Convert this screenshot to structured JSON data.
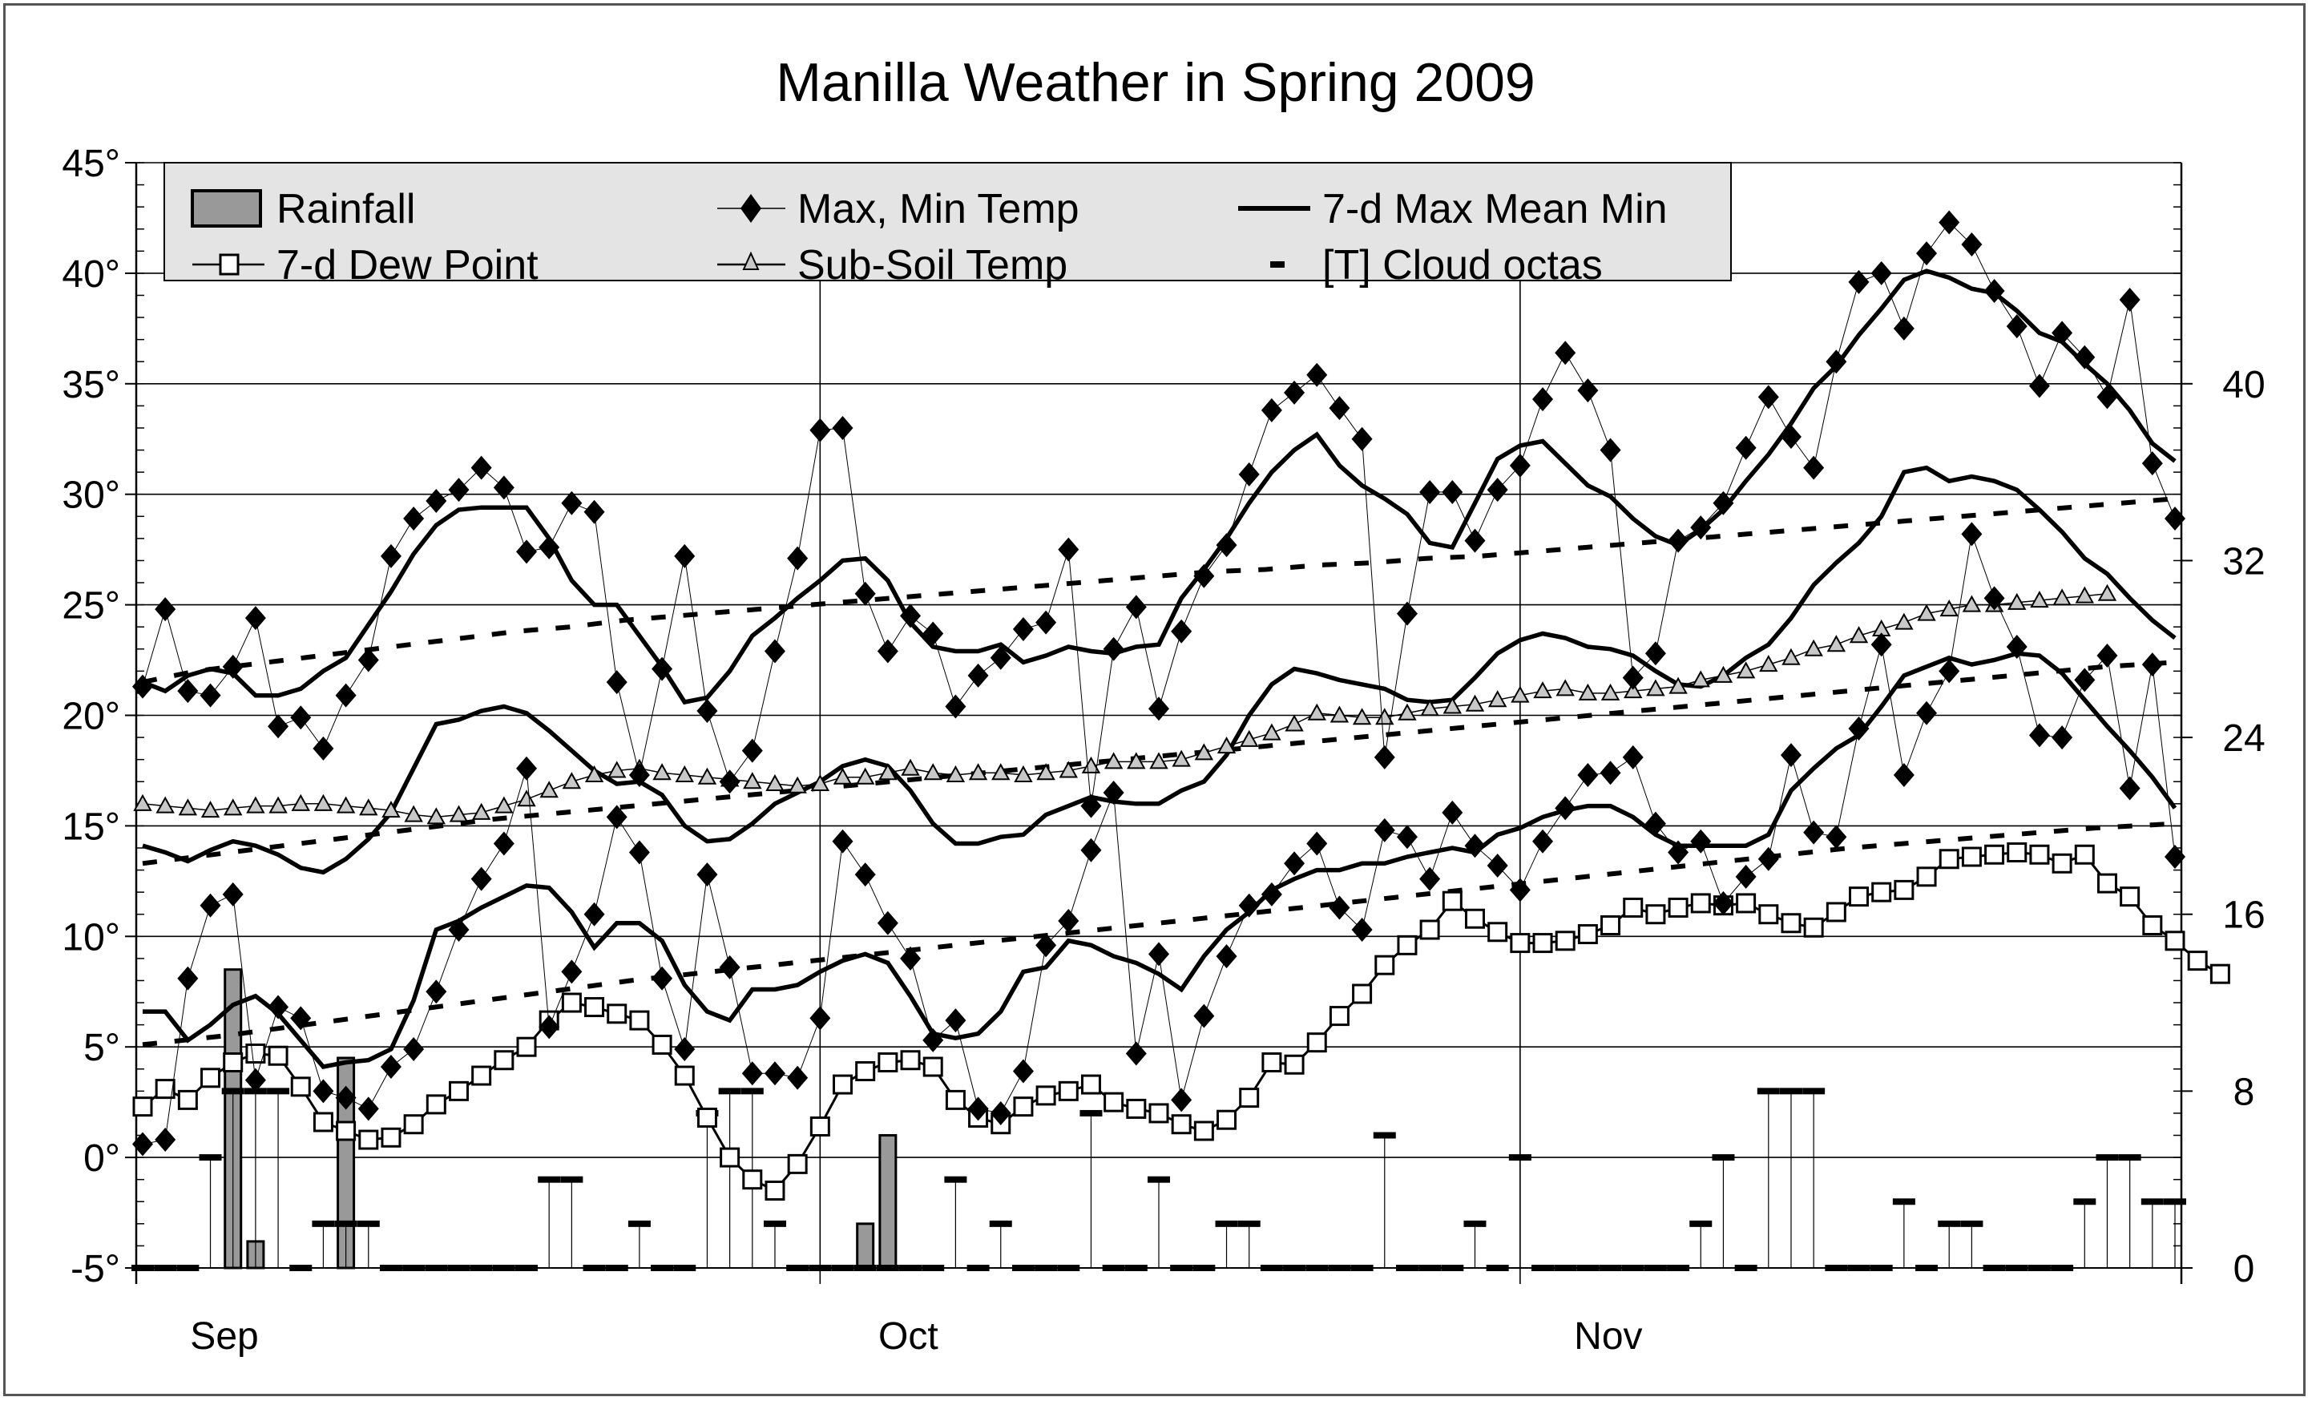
{
  "chart_data": {
    "type": "line",
    "title": "Manilla Weather in Spring 2009",
    "xlabel": "",
    "ylabel": "",
    "ylim": [
      -5,
      45
    ],
    "y2lim": [
      0,
      50
    ],
    "grid": true,
    "legend_placement": "top-left",
    "y_tick_labels": [
      "45°",
      "40°",
      "35°",
      "30°",
      "25°",
      "20°",
      "15°",
      "10°",
      "5°",
      "0°",
      "-5°"
    ],
    "y_tick_values": [
      45,
      40,
      35,
      30,
      25,
      20,
      15,
      10,
      5,
      0,
      -5
    ],
    "y2_tick_labels": [
      "40",
      "32",
      "24",
      "16",
      "8",
      "0"
    ],
    "y2_tick_values": [
      40,
      32,
      24,
      16,
      8,
      0
    ],
    "x_tick_labels": [
      "Sep",
      "Oct",
      "Nov"
    ],
    "x_tick_days": [
      0,
      30,
      61
    ],
    "legend": [
      {
        "key": "rainfall",
        "label": "Rainfall",
        "symbol": "bar"
      },
      {
        "key": "maxmin",
        "label": "Max, Min Temp",
        "symbol": "diamond"
      },
      {
        "key": "mean7",
        "label": "7-d  Max Mean Min",
        "symbol": "thick-line"
      },
      {
        "key": "dew",
        "label": "7-d Dew Point",
        "symbol": "square"
      },
      {
        "key": "soil",
        "label": "Sub-Soil Temp",
        "symbol": "triangle"
      },
      {
        "key": "cloud",
        "label": "[T] Cloud octas",
        "symbol": "dash"
      }
    ],
    "colors": {
      "bar": "#999999",
      "line": "#000000",
      "soil_marker": "#c8c8c8",
      "legend_bg": "#e4e4e4"
    },
    "series": [
      {
        "name": "Max Temp",
        "values": [
          21.3,
          24.8,
          21.1,
          20.9,
          22.2,
          24.4,
          19.5,
          19.9,
          18.5,
          20.9,
          22.5,
          27.2,
          28.9,
          29.7,
          30.2,
          31.2,
          30.3,
          27.4,
          27.6,
          29.6,
          29.2,
          21.5,
          17.3,
          22.1,
          27.2,
          20.2,
          17.0,
          18.4,
          22.9,
          27.1,
          32.9,
          33.0,
          25.5,
          22.9,
          24.5,
          23.7,
          20.4,
          21.8,
          22.6,
          23.9,
          24.2,
          27.5,
          15.9,
          23.0,
          24.9,
          20.3,
          23.8,
          26.3,
          27.7,
          30.9,
          33.8,
          34.6,
          35.4,
          33.9,
          32.5,
          18.1,
          24.6,
          30.1,
          30.1,
          27.9,
          30.2,
          31.3,
          34.3,
          36.4,
          34.7,
          32.0,
          21.7,
          22.8,
          27.9,
          28.5,
          29.6,
          32.1,
          34.4,
          32.6,
          31.2,
          36.0,
          39.6,
          40.0,
          37.5,
          40.9,
          42.3,
          41.3,
          39.2,
          37.6,
          34.9,
          37.3,
          36.2,
          34.4,
          38.8,
          31.4,
          28.9
        ]
      },
      {
        "name": "Min Temp",
        "values": [
          0.6,
          0.8,
          8.1,
          11.4,
          11.9,
          3.5,
          6.8,
          6.3,
          3.0,
          2.7,
          2.2,
          4.1,
          4.9,
          7.5,
          10.3,
          12.6,
          14.2,
          17.6,
          5.9,
          8.4,
          11.0,
          15.4,
          13.8,
          8.1,
          4.9,
          12.8,
          8.6,
          3.8,
          3.8,
          3.6,
          6.3,
          14.3,
          12.8,
          10.6,
          9.0,
          5.3,
          6.2,
          2.2,
          2.0,
          3.9,
          9.6,
          10.7,
          13.9,
          16.5,
          4.7,
          9.2,
          2.6,
          6.4,
          9.1,
          11.4,
          11.9,
          13.3,
          14.2,
          11.3,
          10.3,
          14.8,
          14.5,
          12.6,
          15.6,
          14.1,
          13.2,
          12.1,
          14.3,
          15.8,
          17.3,
          17.4,
          18.1,
          15.1,
          13.8,
          14.3,
          11.5,
          12.7,
          13.5,
          18.2,
          14.7,
          14.5,
          19.4,
          23.2,
          17.3,
          20.1,
          22.0,
          28.2,
          25.3,
          23.1,
          19.1,
          19.0,
          21.6,
          22.7,
          16.7,
          22.3,
          13.6
        ]
      },
      {
        "name": "7-d Max",
        "values": [
          21.5,
          21.1,
          21.8,
          22.1,
          21.9,
          20.9,
          20.9,
          21.2,
          22.0,
          22.6,
          24.1,
          25.6,
          27.3,
          28.6,
          29.3,
          29.4,
          29.4,
          29.4,
          28.0,
          26.1,
          25.0,
          25.0,
          23.6,
          22.2,
          20.6,
          20.8,
          22.0,
          23.6,
          24.4,
          25.3,
          26.1,
          27.0,
          27.1,
          26.1,
          24.2,
          23.1,
          22.9,
          22.9,
          23.2,
          22.4,
          22.7,
          23.1,
          22.9,
          22.8,
          23.1,
          23.2,
          25.3,
          26.6,
          28.0,
          29.6,
          31.0,
          32.0,
          32.7,
          31.3,
          30.4,
          29.8,
          29.1,
          27.8,
          27.6,
          29.6,
          31.6,
          32.2,
          32.4,
          31.4,
          30.4,
          29.9,
          28.9,
          28.1,
          27.7,
          28.4,
          29.3,
          30.6,
          31.8,
          33.2,
          34.8,
          35.8,
          37.2,
          38.4,
          39.7,
          40.1,
          39.8,
          39.3,
          39.1,
          38.3,
          37.3,
          36.9,
          35.9,
          35.0,
          33.8,
          32.3,
          31.5
        ]
      },
      {
        "name": "7-d Mean",
        "values": [
          14.1,
          13.8,
          13.4,
          13.9,
          14.3,
          14.1,
          13.7,
          13.1,
          12.9,
          13.5,
          14.4,
          15.6,
          17.6,
          19.6,
          19.8,
          20.2,
          20.4,
          20.1,
          19.3,
          18.4,
          17.5,
          16.9,
          17.0,
          16.4,
          15.0,
          14.3,
          14.4,
          15.1,
          16.0,
          16.5,
          17.0,
          17.7,
          18.0,
          17.7,
          16.6,
          15.1,
          14.2,
          14.2,
          14.5,
          14.6,
          15.5,
          15.9,
          16.3,
          16.1,
          16.0,
          16.0,
          16.6,
          17.0,
          18.2,
          20.0,
          21.4,
          22.1,
          21.9,
          21.6,
          21.4,
          21.2,
          20.7,
          20.6,
          20.7,
          21.7,
          22.8,
          23.4,
          23.7,
          23.5,
          23.1,
          23.0,
          22.7,
          22.0,
          21.4,
          21.3,
          21.8,
          22.6,
          23.2,
          24.4,
          25.9,
          26.9,
          27.8,
          29.0,
          31.0,
          31.2,
          30.6,
          30.8,
          30.6,
          30.2,
          29.3,
          28.3,
          27.1,
          26.4,
          25.3,
          24.3,
          23.5
        ]
      },
      {
        "name": "7-d Min",
        "values": [
          6.6,
          6.6,
          5.3,
          6.0,
          6.9,
          7.3,
          6.5,
          5.3,
          4.1,
          4.3,
          4.4,
          4.9,
          7.1,
          10.3,
          10.7,
          11.3,
          11.8,
          12.3,
          12.2,
          11.1,
          9.5,
          10.6,
          10.6,
          9.8,
          7.8,
          6.6,
          6.2,
          7.6,
          7.6,
          7.8,
          8.4,
          8.9,
          9.2,
          8.8,
          7.3,
          5.6,
          5.4,
          5.6,
          6.6,
          8.4,
          8.6,
          9.8,
          9.6,
          9.1,
          8.8,
          8.3,
          7.6,
          9.1,
          10.3,
          11.1,
          12.1,
          12.6,
          13.0,
          13.0,
          13.3,
          13.3,
          13.6,
          13.8,
          14.0,
          13.8,
          14.6,
          14.9,
          15.4,
          15.7,
          15.9,
          15.9,
          15.4,
          14.6,
          14.1,
          14.1,
          14.1,
          14.1,
          14.6,
          16.6,
          17.6,
          18.5,
          19.1,
          20.4,
          21.8,
          22.2,
          22.6,
          22.3,
          22.5,
          22.8,
          22.7,
          21.9,
          20.7,
          19.5,
          18.4,
          17.2,
          15.8
        ]
      },
      {
        "name": "7-d Dew Point",
        "values": [
          2.3,
          3.1,
          2.6,
          3.6,
          4.3,
          4.7,
          4.6,
          3.2,
          1.6,
          1.2,
          0.8,
          0.9,
          1.5,
          2.4,
          3.0,
          3.7,
          4.4,
          5.0,
          6.2,
          7.0,
          6.8,
          6.5,
          6.2,
          5.1,
          3.7,
          1.8,
          0.0,
          -1.0,
          -1.5,
          -0.3,
          1.4,
          3.3,
          3.9,
          4.3,
          4.4,
          4.1,
          2.6,
          1.8,
          1.5,
          2.3,
          2.8,
          3.0,
          3.3,
          2.5,
          2.2,
          2.0,
          1.5,
          1.2,
          1.7,
          2.7,
          4.3,
          4.2,
          5.2,
          6.4,
          7.4,
          8.7,
          9.6,
          10.3,
          11.6,
          10.8,
          10.2,
          9.7,
          9.7,
          9.8,
          10.1,
          10.5,
          11.3,
          11.0,
          11.3,
          11.5,
          11.4,
          11.5,
          11.0,
          10.6,
          10.4,
          11.1,
          11.8,
          12.0,
          12.1,
          12.7,
          13.5,
          13.6,
          13.7,
          13.8,
          13.7,
          13.3,
          13.7,
          12.4,
          11.8,
          10.5,
          9.8,
          8.9,
          8.3
        ]
      },
      {
        "name": "Sub-Soil Temp",
        "values": [
          16.0,
          15.9,
          15.8,
          15.7,
          15.8,
          15.9,
          15.9,
          16.0,
          16.0,
          15.9,
          15.8,
          15.7,
          15.5,
          15.4,
          15.5,
          15.6,
          15.9,
          16.2,
          16.6,
          17.0,
          17.3,
          17.5,
          17.6,
          17.4,
          17.3,
          17.2,
          17.1,
          17.0,
          16.9,
          16.8,
          16.9,
          17.2,
          17.2,
          17.4,
          17.6,
          17.4,
          17.3,
          17.4,
          17.4,
          17.3,
          17.4,
          17.5,
          17.7,
          17.9,
          17.9,
          17.9,
          18.0,
          18.3,
          18.6,
          18.9,
          19.2,
          19.6,
          20.1,
          20.0,
          19.9,
          19.9,
          20.1,
          20.3,
          20.4,
          20.5,
          20.7,
          20.9,
          21.1,
          21.2,
          21.0,
          21.0,
          21.1,
          21.2,
          21.3,
          21.6,
          21.8,
          22.0,
          22.3,
          22.6,
          23.0,
          23.2,
          23.6,
          23.9,
          24.2,
          24.6,
          24.8,
          25.0,
          25.0,
          25.1,
          25.2,
          25.3,
          25.4,
          25.5
        ]
      },
      {
        "name": "Max Trend",
        "values": [
          21.5,
          22.0,
          22.3,
          22.6,
          22.9,
          23.2,
          23.5,
          23.8,
          24.0,
          24.3,
          24.5,
          24.7,
          24.9,
          25.1,
          25.3,
          25.5,
          25.7,
          25.9,
          26.1,
          26.3,
          26.5,
          26.6,
          26.8,
          26.9,
          27.1,
          27.2,
          27.4,
          27.6,
          27.8,
          28.0,
          28.2,
          28.4,
          28.6,
          28.8,
          29.0,
          29.2,
          29.4,
          29.6,
          29.8
        ]
      },
      {
        "name": "Mean Trend",
        "values": [
          13.3,
          13.7,
          14.1,
          14.5,
          14.9,
          15.3,
          15.6,
          15.9,
          16.2,
          16.5,
          16.8,
          17.1,
          17.4,
          17.7,
          18.0,
          18.3,
          18.6,
          18.9,
          19.2,
          19.5,
          19.8,
          20.1,
          20.4,
          20.7,
          21.0,
          21.3,
          21.6,
          21.9,
          22.2,
          22.4
        ]
      },
      {
        "name": "Min Trend",
        "values": [
          5.1,
          5.5,
          6.0,
          6.5,
          7.0,
          7.5,
          8.0,
          8.4,
          8.8,
          9.2,
          9.6,
          10.0,
          10.4,
          10.8,
          11.2,
          11.6,
          12.0,
          12.4,
          12.8,
          13.2,
          13.6,
          14.0,
          14.3,
          14.6,
          14.9,
          15.1
        ]
      },
      {
        "name": "Rainfall",
        "axis": "right",
        "values": [
          0,
          0,
          0,
          0,
          13.5,
          1.2,
          0,
          0,
          0,
          9.5,
          0,
          0,
          0,
          0,
          0,
          0,
          0,
          0,
          0,
          0,
          0,
          0,
          0,
          0,
          0,
          0,
          0,
          0,
          0,
          0,
          0,
          0,
          2,
          6,
          0,
          0,
          0,
          0,
          0,
          0,
          0,
          0,
          0,
          0,
          0,
          0,
          0,
          0,
          0,
          0,
          0,
          0,
          0,
          0,
          0,
          0,
          0,
          0,
          0,
          0,
          0,
          0,
          0,
          0,
          0,
          0,
          0,
          0,
          0,
          0,
          0,
          0,
          0,
          0,
          0,
          0,
          0,
          0,
          0,
          0,
          0,
          0,
          0,
          0,
          0,
          0,
          0,
          0,
          0,
          0,
          0
        ]
      },
      {
        "name": "Cloud octas",
        "axis": "right",
        "values": [
          0,
          0,
          0,
          5,
          8,
          8,
          8,
          0,
          2,
          2,
          2,
          0,
          0,
          0,
          0,
          0,
          0,
          0,
          4,
          4,
          0,
          0,
          2,
          0,
          0,
          7,
          8,
          8,
          2,
          0,
          0,
          0,
          0,
          0,
          0,
          0,
          4,
          0,
          2,
          0,
          0,
          0,
          7,
          0,
          0,
          4,
          0,
          0,
          2,
          2,
          0,
          0,
          0,
          0,
          0,
          6,
          0,
          0,
          0,
          2,
          0,
          5,
          0,
          0,
          0,
          0,
          0,
          0,
          0,
          2,
          5,
          0,
          8,
          8,
          8,
          0,
          0,
          0,
          3,
          0,
          2,
          2,
          0,
          0,
          0,
          0,
          3,
          5,
          5,
          3,
          3
        ]
      }
    ]
  }
}
